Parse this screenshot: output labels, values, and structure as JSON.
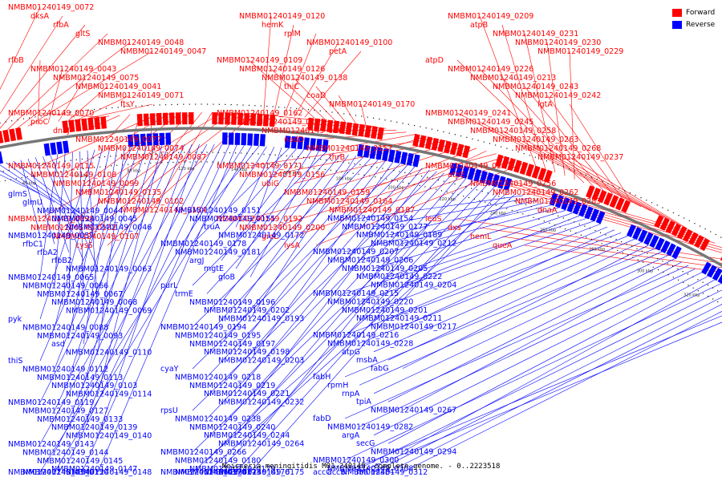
{
  "caption": "Neisseria meningitidis M01-240149, complete genome. - 0..2223518",
  "legend": [
    {
      "label": "Forward",
      "color": "#ff0000"
    },
    {
      "label": "Reverse",
      "color": "#0000ff"
    }
  ],
  "colors": {
    "forward": "#ff0000",
    "reverse": "#0000ff",
    "backbone": "#777777"
  },
  "genome_length": 2223518,
  "ticks": [
    "40 kbp",
    "60 kbp",
    "80 kbp",
    "120 kbp",
    "140 kbp",
    "160 kbp",
    "180 kbp",
    "200 kbp",
    "220 kbp",
    "240 kbp",
    "260 kbp",
    "280 kbp",
    "300 kbp",
    "320 kbp",
    "340 kbp"
  ],
  "forward_labels": [
    "NMBM01240149_0072",
    "dksA",
    "rfbA",
    "gltS",
    "NMBM01240149_0048",
    "NMBM01240149_0047",
    "rfbB",
    "NMBM01240149_0043",
    "NMBM01240149_0075",
    "NMBM01240149_0041",
    "NMBM01240149_0071",
    "ftsY",
    "NMBM01240149_0070",
    "proC",
    "dnaJ",
    "NMBM01240149_0077",
    "NMBM01240149_0074",
    "NMBM01240149_0087",
    "NMBM01240149_0115",
    "NMBM01240149_0108",
    "NMBM01240149_0099",
    "NMBM01240149_0135",
    "NMBM01240149_0102",
    "NMBM01240149_0134",
    "NMBM01240149_0098",
    "NMBM01240149_0132",
    "NMBM01240149_0107",
    "cysS",
    "NMBM01240149_0120",
    "hemK",
    "rplM",
    "NMBM01240149_0100",
    "petA",
    "NMBM01240149_0109",
    "NMBM01240149_0126",
    "NMBM01240149_0138",
    "thiC",
    "coaD",
    "NMBM01240149_0170",
    "NMBM01240149_0162",
    "NMBM01240149_0161",
    "NMBM01240149_0160",
    "nadD",
    "NMBM01240149_0157",
    "thrB",
    "NMBM01240149_0171",
    "NMBM01240149_0156",
    "ubiG",
    "NMBM01240149_0159",
    "NMBM01240149_0164",
    "NMBM01240149_0187",
    "NMBM01240149_0192",
    "NMBM01240149_0200",
    "groL",
    "lysA",
    "NMBM01240149_0209",
    "atpB",
    "NMBM01240149_0231",
    "NMBM01240149_0230",
    "NMBM01240149_0229",
    "atpD",
    "NMBM01240149_0226",
    "NMBM01240149_0213",
    "NMBM01240149_0243",
    "NMBM01240149_0242",
    "lgtA",
    "NMBM01240149_0241",
    "NMBM01240149_0245",
    "NMBM01240149_0258",
    "NMBM01240149_0263",
    "NMBM01240149_0268",
    "NMBM01240149_0237",
    "NMBM01240149_0257",
    "atpE",
    "NMBM01240149_0256",
    "NMBM01240149_0262",
    "NMBM01240149_0283",
    "dnaA",
    "leuS",
    "dxs",
    "hemL",
    "queA"
  ],
  "reverse_labels": [
    "glmS",
    "glmU",
    "NMBM01240149_0044",
    "NMBM01240149_0045",
    "NMBM01240149_0046",
    "NMBM01240149_0057",
    "rfbC1",
    "rfbA2",
    "rfbB2",
    "NMBM01240149_0063",
    "NMBM01240149_0065",
    "NMBM01240149_0066",
    "NMBM01240149_0067",
    "NMBM01240149_0068",
    "NMBM01240149_0069",
    "pyk",
    "NMBM01240149_0088",
    "NMBM01240149_0093",
    "asd",
    "NMBM01240149_0110",
    "thiS",
    "NMBM01240149_0112",
    "NMBM01240149_0113",
    "NMBM01240149_0103",
    "NMBM01240149_0114",
    "NMBM01240149_0119",
    "NMBM01240149_0127",
    "NMBM01240149_0133",
    "NMBM01240149_0139",
    "NMBM01240149_0140",
    "NMBM01240149_0143",
    "NMBM01240149_0144",
    "NMBM01240149_0145",
    "NMBM01240149_0147",
    "NMBM01240149_0148",
    "NMBM01240149_0149",
    "NMBM01240149_0150",
    "NMBM01240149_0151",
    "NMBM01240149_0155",
    "truA",
    "NMBM01240149_0172",
    "NMBM01240149_0178",
    "NMBM01240149_0181",
    "argJ",
    "mgtE",
    "gloB",
    "purL",
    "trmE",
    "NMBM01240149_0196",
    "NMBM01240149_0202",
    "NMBM01240149_0193",
    "NMBM01240149_0194",
    "NMBM01240149_0195",
    "NMBM01240149_0197",
    "NMBM01240149_0198",
    "NMBM01240149_0203",
    "cyaY",
    "NMBM01240149_0218",
    "NMBM01240149_0219",
    "NMBM01240149_0221",
    "NMBM01240149_0232",
    "rpsU",
    "NMBM01240149_0238",
    "NMBM01240149_0240",
    "NMBM01240149_0244",
    "NMBM01240149_0264",
    "NMBM01240149_0266",
    "NMBM01240149_0180",
    "NMBM01240149_0179",
    "NMBM01240149_0176",
    "NMBM01240149_0175",
    "NMBM01240149_0174",
    "NMBM01240149_0173",
    "NMBM01240149_0154",
    "NMBM01240149_0177",
    "NMBM01240149_0189",
    "NMBM01240149_0212",
    "NMBM01240149_0207",
    "NMBM01240149_0206",
    "NMBM01240149_0205",
    "NMBM01240149_0222",
    "NMBM01240149_0204",
    "NMBM01240149_0215",
    "NMBM01240149_0220",
    "NMBM01240149_0201",
    "NMBM01240149_0211",
    "NMBM01240149_0217",
    "NMBM01240149_0216",
    "NMBM01240149_0228",
    "atpG",
    "msbA",
    "fabG",
    "fabH",
    "rpmH",
    "rnpA",
    "tpiA",
    "NMBM01240149_0267",
    "fabD",
    "NMBM01240149_0282",
    "argA",
    "secG",
    "NMBM01240149_0294",
    "NMBM01240149_0300",
    "NMBM01240149_0308",
    "NMBM01240149_0312",
    "fba",
    "miaB",
    "accC",
    "accB"
  ]
}
